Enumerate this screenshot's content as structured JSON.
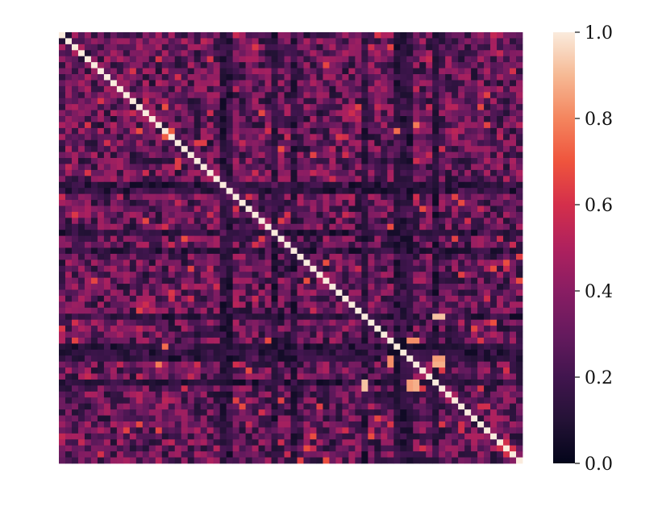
{
  "chart_data": {
    "type": "heatmap",
    "title": "",
    "xlabel": "",
    "ylabel": "",
    "rows": 72,
    "cols": 72,
    "diagonal_value": 1.0,
    "typical_off_diagonal_range": [
      0.05,
      0.6
    ],
    "highlighted_pairs": [
      {
        "row": 16,
        "col": 17,
        "value": 0.72
      },
      {
        "row": 15,
        "col": 55,
        "value": 0.78
      },
      {
        "row": 47,
        "col": 58,
        "value": 0.92
      },
      {
        "row": 47,
        "col": 59,
        "value": 0.92
      },
      {
        "row": 54,
        "col": 58,
        "value": 0.85
      },
      {
        "row": 54,
        "col": 59,
        "value": 0.85
      },
      {
        "row": 55,
        "col": 58,
        "value": 0.88
      },
      {
        "row": 55,
        "col": 59,
        "value": 0.88
      },
      {
        "row": 54,
        "col": 51,
        "value": 0.82
      },
      {
        "row": 55,
        "col": 51,
        "value": 0.82
      },
      {
        "row": 52,
        "col": 16,
        "value": 0.75
      }
    ],
    "low_correlation_rows": [
      25,
      33,
      47,
      53,
      54
    ],
    "low_correlation_cols": [
      26,
      36,
      52,
      58
    ],
    "colorbar": {
      "colormap": "rocket",
      "min": 0.0,
      "max": 1.0,
      "ticks": [
        "0.0",
        "0.2",
        "0.4",
        "0.6",
        "0.8",
        "1.0"
      ],
      "tick_values": [
        0.0,
        0.2,
        0.4,
        0.6,
        0.8,
        1.0
      ]
    }
  }
}
